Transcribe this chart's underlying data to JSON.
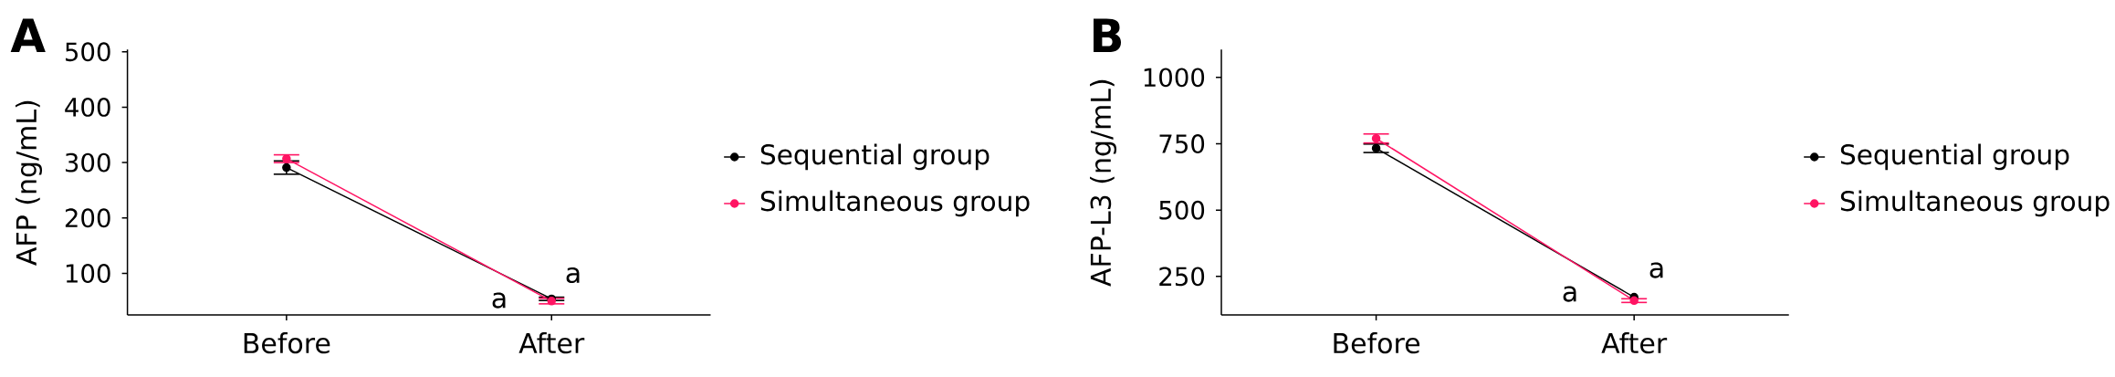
{
  "chart_data": [
    {
      "type": "line",
      "title": "A",
      "ylabel": "AFP (ng/mL)",
      "categories": [
        "Before",
        "After"
      ],
      "series": [
        {
          "name": "Sequential group",
          "color": "#000000",
          "values": [
            291,
            54
          ],
          "errors": [
            12,
            3
          ]
        },
        {
          "name": "Simultaneous group",
          "color": "#ff1463",
          "values": [
            307,
            50
          ],
          "errors": [
            7,
            5
          ]
        }
      ],
      "ylim": [
        25,
        504
      ],
      "yticks": [
        100,
        200,
        300,
        400,
        500
      ],
      "marker": "circle",
      "line_style": "solid",
      "legend": "right",
      "annotations": [
        "a",
        "a"
      ]
    },
    {
      "type": "line",
      "title": "B",
      "ylabel": "AFP-L3 (ng/mL)",
      "categories": [
        "Before",
        "After"
      ],
      "series": [
        {
          "name": "Sequential group",
          "color": "#000000",
          "values": [
            733,
            172
          ],
          "errors": [
            16,
            null
          ]
        },
        {
          "name": "Simultaneous group",
          "color": "#ff1463",
          "values": [
            770,
            159
          ],
          "errors": [
            17,
            7
          ]
        }
      ],
      "ylim": [
        105,
        1105
      ],
      "yticks": [
        250,
        500,
        750,
        1000
      ],
      "marker": "circle",
      "line_style": "solid",
      "legend": "right",
      "annotations": [
        "a",
        "a"
      ]
    }
  ]
}
